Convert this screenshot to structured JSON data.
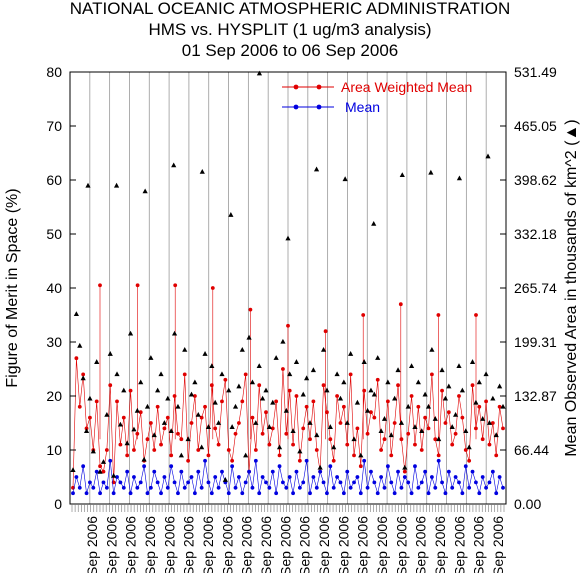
{
  "header": {
    "line1": "NATIONAL OCEANIC ATMOSPHERIC ADMINISTRATION",
    "line2": "HMS vs. HYSPLIT (1 ug/m3 analysis)",
    "line3": "01 Sep 2006 to 06 Sep 2006"
  },
  "colors": {
    "area_weighted_mean": "#e00000",
    "mean": "#0000e0",
    "observed_area": "#000000",
    "grid": "#999999"
  },
  "chart_data": {
    "type": "line",
    "title": "NATIONAL OCEANIC ATMOSPHERIC ADMINISTRATION",
    "subtitle": "HMS vs. HYSPLIT (1 ug/m3 analysis) — 01 Sep 2006 to 06 Sep 2006",
    "ylabel": "Figure of Merit in Space (%)",
    "y2label": "Mean Observed Area in thousands of km^2 (▲)",
    "y2_marker_glyph": "▲",
    "ylim": [
      0,
      80
    ],
    "yticks": [
      "0",
      "10",
      "20",
      "30",
      "40",
      "50",
      "60",
      "70",
      "80"
    ],
    "y2lim": [
      0,
      531.49
    ],
    "y2ticks": [
      "0.00",
      "66.44",
      "132.87",
      "199.31",
      "265.74",
      "332.18",
      "398.62",
      "465.05",
      "531.49"
    ],
    "x_tick_label": "Sep 2006",
    "x_label_count": 22,
    "legend": {
      "position": "top-right",
      "entries": [
        "Area Weighted Mean",
        "Mean"
      ]
    },
    "grid": "vertical lines at run boundaries",
    "series": [
      {
        "name": "Area Weighted Mean",
        "values": [
          3,
          27,
          18,
          24,
          14,
          16,
          10,
          19,
          7,
          6,
          10,
          22,
          4,
          19,
          11,
          16,
          9,
          21,
          10,
          13,
          17,
          8,
          12,
          15,
          10,
          18,
          11,
          14,
          16,
          9,
          20,
          13,
          12,
          24,
          8,
          15,
          20,
          10,
          16,
          18,
          9,
          22,
          14,
          11,
          19,
          23,
          10,
          8,
          13,
          15,
          19,
          24,
          6,
          16,
          10,
          22,
          13,
          17,
          11,
          14,
          19,
          9,
          25,
          13,
          21,
          11,
          20,
          8,
          14,
          18,
          12,
          19,
          10,
          6,
          22,
          17,
          12,
          8,
          20,
          15,
          18,
          11,
          24,
          9,
          14,
          7,
          21,
          13,
          17,
          16,
          23,
          10,
          12,
          19,
          9,
          15,
          22,
          12,
          6,
          13,
          20,
          11,
          18,
          10,
          16,
          14,
          24,
          12,
          9,
          21,
          15,
          17,
          11,
          13,
          20,
          16,
          10,
          8,
          22,
          14,
          18,
          12,
          19,
          11,
          15,
          9,
          18,
          14
        ]
      },
      {
        "name": "Mean",
        "values": [
          2,
          5,
          3,
          7,
          2,
          4,
          3,
          6,
          2,
          4,
          3,
          8,
          2,
          5,
          4,
          3,
          6,
          2,
          5,
          3,
          4,
          7,
          2,
          3,
          6,
          4,
          2,
          5,
          3,
          7,
          4,
          2,
          6,
          3,
          4,
          5,
          2,
          6,
          3,
          8,
          4,
          2,
          5,
          3,
          6,
          4,
          2,
          7,
          3,
          5,
          2,
          4,
          6,
          3,
          8,
          2,
          5,
          4,
          3,
          6,
          2,
          7,
          4,
          3,
          5,
          2,
          6,
          3,
          4,
          8,
          2,
          5,
          3,
          6,
          4,
          2,
          7,
          3,
          5,
          4,
          2,
          6,
          3,
          4,
          5,
          2,
          8,
          3,
          6,
          4,
          2,
          5,
          3,
          7,
          4,
          2,
          6,
          3,
          5,
          4,
          2,
          7,
          3,
          4,
          6,
          2,
          5,
          3,
          8,
          4,
          2,
          6,
          3,
          5,
          4,
          2,
          7,
          3,
          6,
          4,
          2,
          5,
          3,
          4,
          6,
          2,
          5,
          3
        ]
      },
      {
        "name": "Mean Observed Area (▲)",
        "values": [
          42,
          234,
          195,
          155,
          90,
          130,
          65,
          175,
          40,
          52,
          110,
          185,
          35,
          160,
          98,
          140,
          75,
          210,
          92,
          115,
          150,
          55,
          120,
          180,
          85,
          140,
          160,
          100,
          130,
          90,
          210,
          120,
          60,
          190,
          80,
          135,
          150,
          110,
          70,
          185,
          95,
          170,
          125,
          100,
          160,
          30,
          140,
          95,
          120,
          145,
          190,
          60,
          205,
          150,
          100,
          170,
          130,
          140,
          95,
          125,
          180,
          70,
          200,
          115,
          160,
          90,
          175,
          65,
          135,
          155,
          100,
          165,
          85,
          45,
          190,
          140,
          95,
          70,
          160,
          130,
          150,
          100,
          185,
          80,
          125,
          60,
          175,
          115,
          140,
          135,
          180,
          90,
          105,
          150,
          85,
          130,
          165,
          100,
          45,
          120,
          170,
          95,
          150,
          90,
          135,
          120,
          190,
          105,
          80,
          165,
          130,
          145,
          95,
          110,
          170,
          140,
          90,
          70,
          175,
          125,
          150,
          105,
          160,
          100,
          130,
          85,
          145,
          120
        ]
      }
    ],
    "spikes": {
      "awm_peaks": [
        40.5,
        40.5,
        40.5,
        40,
        36,
        33,
        32,
        35,
        37,
        35,
        35
      ],
      "area_peaks_thousands_km2": [
        392,
        392,
        385,
        417,
        409,
        356,
        530,
        327,
        412,
        400,
        345,
        405,
        408,
        401,
        428
      ]
    }
  }
}
